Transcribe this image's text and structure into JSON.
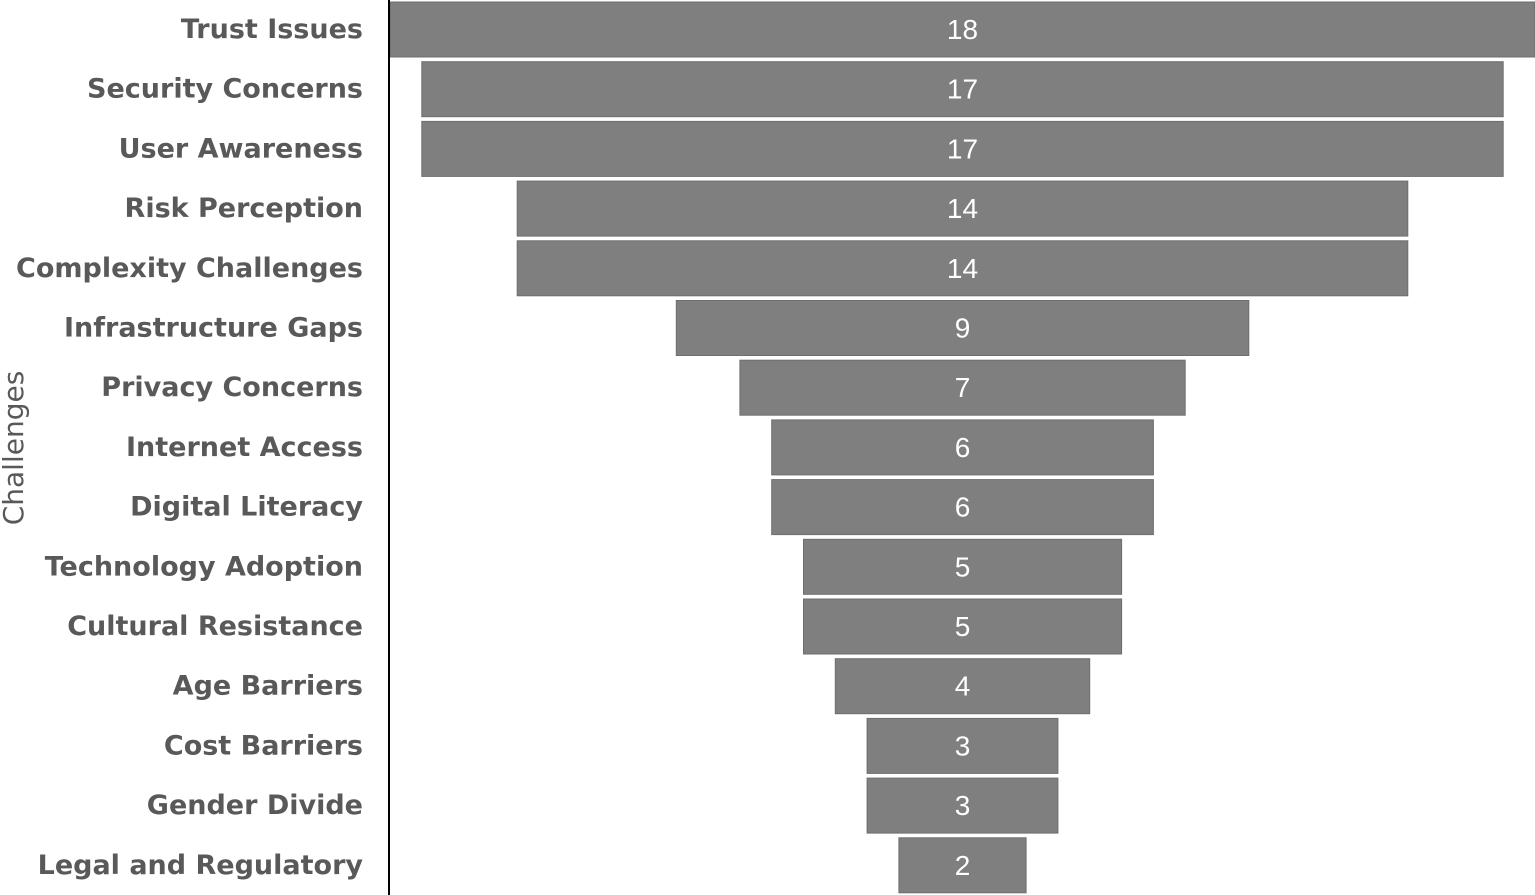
{
  "chart_data": {
    "type": "bar",
    "orientation": "horizontal-funnel",
    "title": "",
    "xlabel": "",
    "ylabel": "Challenges",
    "categories": [
      "Trust Issues",
      "Security Concerns",
      "User Awareness",
      "Risk Perception",
      "Complexity Challenges",
      "Infrastructure Gaps",
      "Privacy Concerns",
      "Internet Access",
      "Digital Literacy",
      "Technology Adoption",
      "Cultural Resistance",
      "Age Barriers",
      "Cost Barriers",
      "Gender Divide",
      "Legal and Regulatory"
    ],
    "values": [
      18,
      17,
      17,
      14,
      14,
      9,
      7,
      6,
      6,
      5,
      5,
      4,
      3,
      3,
      2
    ],
    "data_labels": true,
    "grid": false,
    "legend": "none",
    "colors": {
      "bar": "#7f7f7f",
      "bar_label": "#ffffff",
      "category_label": "#595959",
      "axis_line": "#000000"
    }
  }
}
